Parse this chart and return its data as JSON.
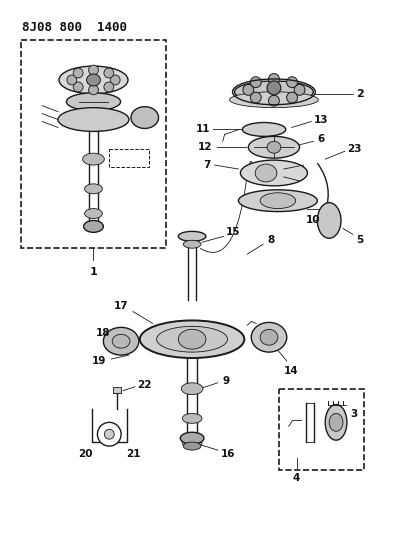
{
  "title": "8J08 800  1400",
  "bg_color": "#ffffff",
  "line_color": "#1a1a1a",
  "label_color": "#111111",
  "fig_width": 3.98,
  "fig_height": 5.33,
  "dpi": 100
}
